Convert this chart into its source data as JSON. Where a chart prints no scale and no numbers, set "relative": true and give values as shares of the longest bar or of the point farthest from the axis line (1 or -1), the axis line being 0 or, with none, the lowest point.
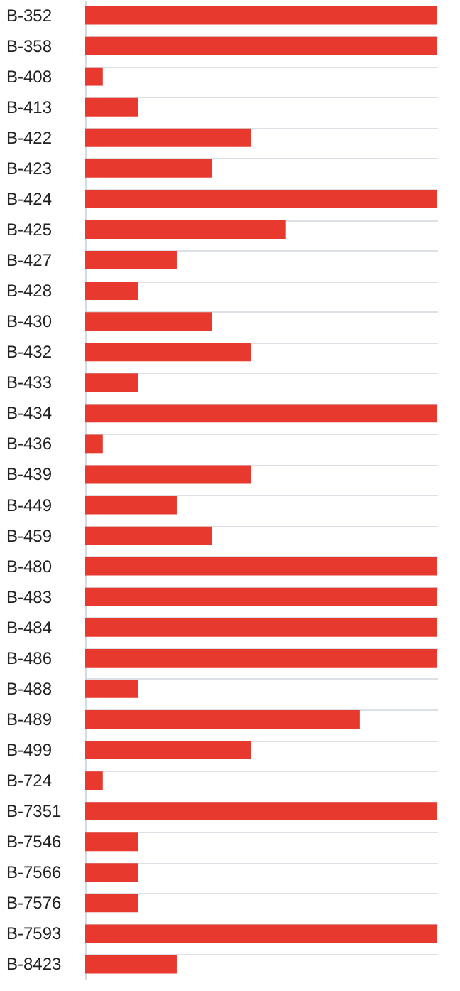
{
  "chart_data": {
    "type": "bar",
    "orientation": "horizontal",
    "relative": true,
    "grid": "y",
    "color": "#e8392f",
    "categories": [
      "B-352",
      "B-358",
      "B-408",
      "B-413",
      "B-422",
      "B-423",
      "B-424",
      "B-425",
      "B-427",
      "B-428",
      "B-430",
      "B-432",
      "B-433",
      "B-434",
      "B-436",
      "B-439",
      "B-449",
      "B-459",
      "B-480",
      "B-483",
      "B-484",
      "B-486",
      "B-488",
      "B-489",
      "B-499",
      "B-724",
      "B-7351",
      "B-7546",
      "B-7566",
      "B-7576",
      "B-7593",
      "B-8423"
    ],
    "values": [
      1,
      1,
      0.05,
      0.15,
      0.47,
      0.36,
      1,
      0.57,
      0.26,
      0.15,
      0.36,
      0.47,
      0.15,
      1,
      0.05,
      0.47,
      0.26,
      0.36,
      1,
      1,
      1,
      1,
      0.15,
      0.78,
      0.47,
      0.05,
      1,
      0.15,
      0.15,
      0.15,
      1,
      0.26
    ]
  }
}
